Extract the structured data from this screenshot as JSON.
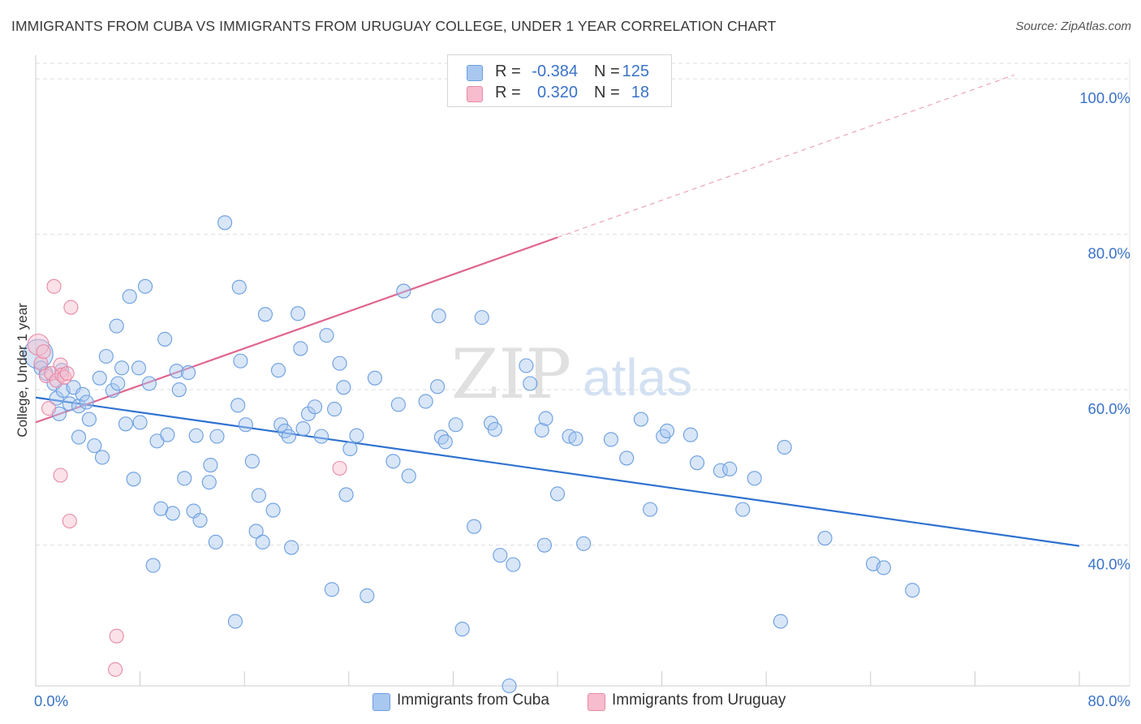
{
  "title": "IMMIGRANTS FROM CUBA VS IMMIGRANTS FROM URUGUAY COLLEGE, UNDER 1 YEAR CORRELATION CHART",
  "source": "Source: ZipAtlas.com",
  "watermark": {
    "zip": "ZIP",
    "atlas": "atlas"
  },
  "legend": {
    "rows": [
      {
        "r_label": "R =",
        "r_value": "-0.384",
        "n_label": "N =",
        "n_value": "125",
        "color": "#a9c8f0",
        "border": "#6b9ee0"
      },
      {
        "r_label": "R =",
        "r_value": "0.320",
        "n_label": "N =",
        "n_value": "18",
        "color": "#f7bccd",
        "border": "#e78aa8"
      }
    ]
  },
  "bottom_legend": {
    "cuba": "Immigrants from Cuba",
    "uruguay": "Immigrants from Uruguay"
  },
  "chart_data": {
    "type": "scatter",
    "title": "IMMIGRANTS FROM CUBA VS IMMIGRANTS FROM URUGUAY COLLEGE, UNDER 1 YEAR CORRELATION CHART",
    "xlabel": "",
    "ylabel": "College, Under 1 year",
    "xlim": [
      0,
      80
    ],
    "ylim": [
      21.9,
      102
    ],
    "x_tick_labels": [
      "0.0%",
      "80.0%"
    ],
    "y_ticks": [
      40,
      60,
      80,
      100
    ],
    "y_tick_labels": [
      "40.0%",
      "60.0%",
      "80.0%",
      "100.0%"
    ],
    "grid": true,
    "legend_position": "top-center",
    "series": [
      {
        "name": "Immigrants from Cuba",
        "color": "#a9c8f0",
        "stroke": "#6b9ee0",
        "line_color": "#2f72d0",
        "trend": {
          "x": [
            0,
            80
          ],
          "y": [
            59.0,
            39.9
          ],
          "dashed_from": null
        },
        "points": [
          [
            0.2,
            64.6
          ],
          [
            0.4,
            62.8
          ],
          [
            0.8,
            62.1
          ],
          [
            1.4,
            60.8
          ],
          [
            1.6,
            58.9
          ],
          [
            1.8,
            56.9
          ],
          [
            2.0,
            62.5
          ],
          [
            2.1,
            59.9
          ],
          [
            2.6,
            58.2
          ],
          [
            2.9,
            60.3
          ],
          [
            3.3,
            57.9
          ],
          [
            3.3,
            53.9
          ],
          [
            3.6,
            59.4
          ],
          [
            3.9,
            58.4
          ],
          [
            4.1,
            56.2
          ],
          [
            4.5,
            52.8
          ],
          [
            4.9,
            61.5
          ],
          [
            5.1,
            51.3
          ],
          [
            5.4,
            64.3
          ],
          [
            5.9,
            59.9
          ],
          [
            6.2,
            68.2
          ],
          [
            6.3,
            60.8
          ],
          [
            6.6,
            62.8
          ],
          [
            6.9,
            55.6
          ],
          [
            7.2,
            72.0
          ],
          [
            7.5,
            48.5
          ],
          [
            7.9,
            62.8
          ],
          [
            8.0,
            55.8
          ],
          [
            8.4,
            73.3
          ],
          [
            8.7,
            60.8
          ],
          [
            9.0,
            37.4
          ],
          [
            9.3,
            53.4
          ],
          [
            9.6,
            44.7
          ],
          [
            9.9,
            66.5
          ],
          [
            10.1,
            54.2
          ],
          [
            10.5,
            44.1
          ],
          [
            10.8,
            62.4
          ],
          [
            11.0,
            60.0
          ],
          [
            11.4,
            48.6
          ],
          [
            11.7,
            62.2
          ],
          [
            12.1,
            44.4
          ],
          [
            12.3,
            54.1
          ],
          [
            12.6,
            43.2
          ],
          [
            13.3,
            48.1
          ],
          [
            13.4,
            50.3
          ],
          [
            13.8,
            40.4
          ],
          [
            13.9,
            54.0
          ],
          [
            14.5,
            81.5
          ],
          [
            15.3,
            30.2
          ],
          [
            15.5,
            58.0
          ],
          [
            15.6,
            73.2
          ],
          [
            15.7,
            63.7
          ],
          [
            16.1,
            55.5
          ],
          [
            16.6,
            50.8
          ],
          [
            16.9,
            41.8
          ],
          [
            17.1,
            46.4
          ],
          [
            17.4,
            40.4
          ],
          [
            17.6,
            69.7
          ],
          [
            18.2,
            44.5
          ],
          [
            18.6,
            62.5
          ],
          [
            18.8,
            55.5
          ],
          [
            19.1,
            54.7
          ],
          [
            19.4,
            54.0
          ],
          [
            19.6,
            39.7
          ],
          [
            20.1,
            69.8
          ],
          [
            20.3,
            65.3
          ],
          [
            20.5,
            55.0
          ],
          [
            20.9,
            56.9
          ],
          [
            21.4,
            57.8
          ],
          [
            21.9,
            54.0
          ],
          [
            22.3,
            67.0
          ],
          [
            22.7,
            34.3
          ],
          [
            22.9,
            57.5
          ],
          [
            23.3,
            63.4
          ],
          [
            23.6,
            60.3
          ],
          [
            23.8,
            46.5
          ],
          [
            24.1,
            52.4
          ],
          [
            24.6,
            54.1
          ],
          [
            25.4,
            33.5
          ],
          [
            26.0,
            61.5
          ],
          [
            27.4,
            50.8
          ],
          [
            27.8,
            58.1
          ],
          [
            28.2,
            72.7
          ],
          [
            28.6,
            48.9
          ],
          [
            29.9,
            58.5
          ],
          [
            30.8,
            60.4
          ],
          [
            30.9,
            69.5
          ],
          [
            31.1,
            53.9
          ],
          [
            31.4,
            53.3
          ],
          [
            32.2,
            55.5
          ],
          [
            32.7,
            29.2
          ],
          [
            33.6,
            42.4
          ],
          [
            34.2,
            69.3
          ],
          [
            34.9,
            55.7
          ],
          [
            35.2,
            54.9
          ],
          [
            35.6,
            38.7
          ],
          [
            36.3,
            21.9
          ],
          [
            36.6,
            37.5
          ],
          [
            37.6,
            63.1
          ],
          [
            37.9,
            60.8
          ],
          [
            38.8,
            54.8
          ],
          [
            39.0,
            40.0
          ],
          [
            39.1,
            56.3
          ],
          [
            40.0,
            46.6
          ],
          [
            40.9,
            54.0
          ],
          [
            41.4,
            53.7
          ],
          [
            42.0,
            40.2
          ],
          [
            44.1,
            53.6
          ],
          [
            45.3,
            51.2
          ],
          [
            46.4,
            56.2
          ],
          [
            47.1,
            44.6
          ],
          [
            48.1,
            54.0
          ],
          [
            48.4,
            54.7
          ],
          [
            50.2,
            54.2
          ],
          [
            50.7,
            50.6
          ],
          [
            52.5,
            49.6
          ],
          [
            53.2,
            49.8
          ],
          [
            54.2,
            44.6
          ],
          [
            55.1,
            48.6
          ],
          [
            57.1,
            30.2
          ],
          [
            57.4,
            52.6
          ],
          [
            60.5,
            40.9
          ],
          [
            64.2,
            37.6
          ],
          [
            65.0,
            37.1
          ],
          [
            67.2,
            34.2
          ]
        ]
      },
      {
        "name": "Immigrants from Uruguay",
        "color": "#f7bccd",
        "stroke": "#e78aa8",
        "line_color": "#e06690",
        "trend": {
          "x": [
            0,
            40
          ],
          "y": [
            55.8,
            79.6
          ],
          "dashed_to": [
            75,
            100.5
          ]
        },
        "points": [
          [
            0.2,
            65.8
          ],
          [
            0.4,
            63.4
          ],
          [
            0.6,
            64.9
          ],
          [
            0.8,
            61.8
          ],
          [
            1.0,
            57.6
          ],
          [
            1.2,
            62.1
          ],
          [
            1.4,
            73.3
          ],
          [
            1.6,
            61.2
          ],
          [
            1.9,
            63.2
          ],
          [
            2.0,
            61.9
          ],
          [
            2.2,
            61.6
          ],
          [
            2.4,
            62.1
          ],
          [
            1.9,
            49.0
          ],
          [
            2.6,
            43.1
          ],
          [
            2.7,
            70.6
          ],
          [
            6.2,
            28.3
          ],
          [
            6.1,
            24.0
          ],
          [
            23.3,
            49.9
          ]
        ]
      }
    ]
  }
}
